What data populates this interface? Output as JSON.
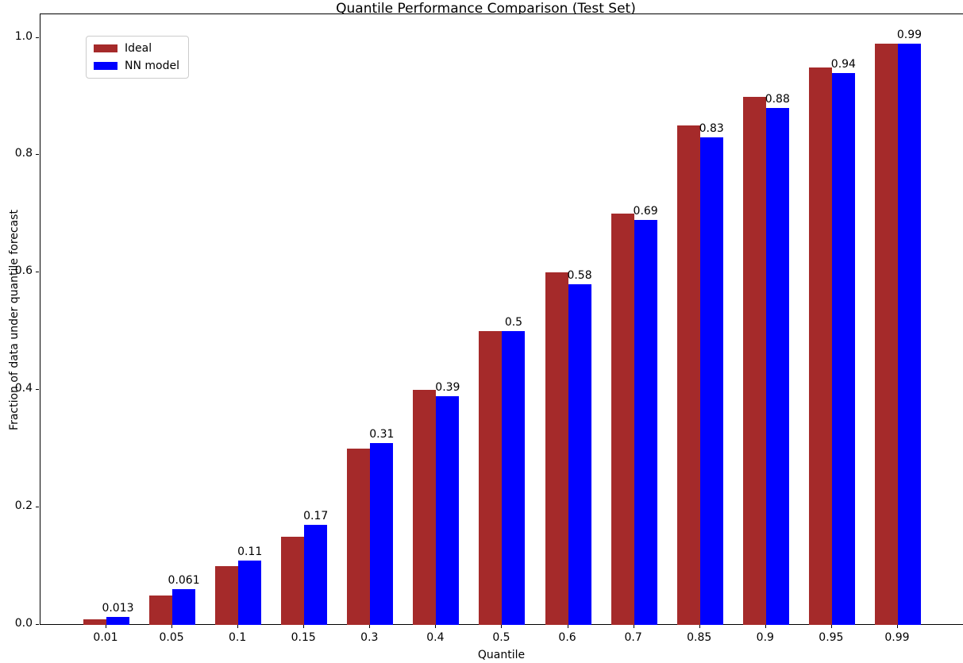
{
  "figure": {
    "title": "Quantile Performance Comparison (Test Set)",
    "xlabel": "Quantile",
    "ylabel": "Fraction of data under quantile forecast"
  },
  "legend": {
    "items": [
      {
        "label": "Ideal",
        "color": "#a52a2a"
      },
      {
        "label": "NN model",
        "color": "#0000ff"
      }
    ]
  },
  "chart_data": {
    "type": "bar",
    "title": "Quantile Performance Comparison (Test Set)",
    "xlabel": "Quantile",
    "ylabel": "Fraction of data under quantile forecast",
    "categories": [
      "0.01",
      "0.05",
      "0.1",
      "0.15",
      "0.3",
      "0.4",
      "0.5",
      "0.6",
      "0.7",
      "0.85",
      "0.9",
      "0.95",
      "0.99"
    ],
    "series": [
      {
        "name": "Ideal",
        "color": "#a52a2a",
        "values": [
          0.01,
          0.05,
          0.1,
          0.15,
          0.3,
          0.4,
          0.5,
          0.6,
          0.7,
          0.85,
          0.9,
          0.95,
          0.99
        ]
      },
      {
        "name": "NN model",
        "color": "#0000ff",
        "values": [
          0.013,
          0.061,
          0.11,
          0.17,
          0.31,
          0.39,
          0.5,
          0.58,
          0.69,
          0.83,
          0.88,
          0.94,
          0.99
        ]
      }
    ],
    "bar_labels": {
      "series": "NN model",
      "values": [
        "0.013",
        "0.061",
        "0.11",
        "0.17",
        "0.31",
        "0.39",
        "0.5",
        "0.58",
        "0.69",
        "0.83",
        "0.88",
        "0.94",
        "0.99"
      ]
    },
    "yticks": [
      0.0,
      0.2,
      0.4,
      0.6,
      0.8,
      1.0
    ],
    "ytick_labels": [
      "0.0",
      "0.2",
      "0.4",
      "0.6",
      "0.8",
      "1.0"
    ],
    "ylim": [
      0,
      1.04
    ],
    "grid": false,
    "legend_position": "upper left"
  }
}
